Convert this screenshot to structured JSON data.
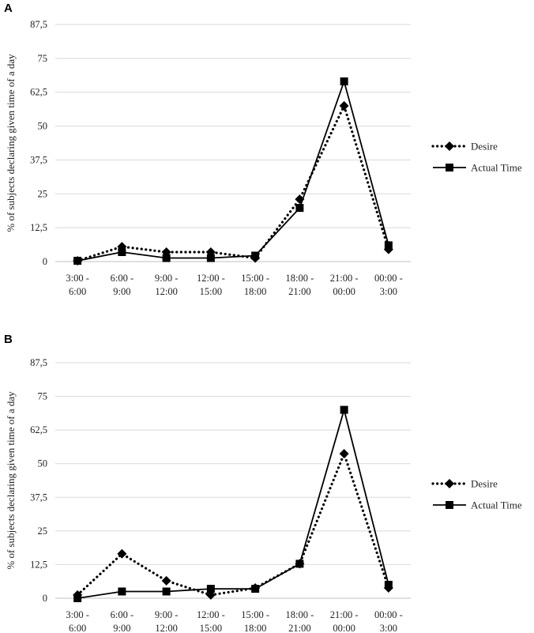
{
  "chart_data": [
    {
      "type": "line",
      "panel_label": "A",
      "ylabel": "% of subjects declaring given time of a day",
      "xlabel": "",
      "categories": [
        [
          "3:00 -",
          "6:00"
        ],
        [
          "6:00 -",
          "9:00"
        ],
        [
          "9:00 -",
          "12:00"
        ],
        [
          "12:00 -",
          "15:00"
        ],
        [
          "15:00 -",
          "18:00"
        ],
        [
          "18:00 -",
          "21:00"
        ],
        [
          "21:00 -",
          "00:00"
        ],
        [
          "00:00 -",
          "3:00"
        ]
      ],
      "yticks": [
        "0",
        "12,5",
        "25",
        "37,5",
        "50",
        "62,5",
        "75",
        "87,5"
      ],
      "ylim": [
        0,
        87.5
      ],
      "grid": true,
      "legend_position": "right",
      "series": [
        {
          "name": "Desire",
          "style": "dotted",
          "marker": "diamond",
          "values": [
            0.3,
            5.5,
            3.5,
            3.5,
            1.3,
            23.0,
            57.5,
            4.5
          ]
        },
        {
          "name": "Actual Time",
          "style": "solid",
          "marker": "square",
          "values": [
            0.3,
            3.5,
            1.3,
            1.3,
            2.2,
            19.8,
            66.5,
            6.0
          ]
        }
      ]
    },
    {
      "type": "line",
      "panel_label": "B",
      "ylabel": "% of subjects declaring given time of a day",
      "xlabel": "",
      "categories": [
        [
          "3:00 -",
          "6:00"
        ],
        [
          "6:00 -",
          "9:00"
        ],
        [
          "9:00 -",
          "12:00"
        ],
        [
          "12:00 -",
          "15:00"
        ],
        [
          "15:00 -",
          "18:00"
        ],
        [
          "18:00 -",
          "21:00"
        ],
        [
          "21:00 -",
          "00:00"
        ],
        [
          "00:00 -",
          "3:00"
        ]
      ],
      "yticks": [
        "0",
        "12,5",
        "25",
        "37,5",
        "50",
        "62,5",
        "75",
        "87,5"
      ],
      "ylim": [
        0,
        87.5
      ],
      "grid": true,
      "legend_position": "right",
      "series": [
        {
          "name": "Desire",
          "style": "dotted",
          "marker": "diamond",
          "values": [
            1.2,
            16.5,
            6.5,
            1.2,
            3.8,
            12.8,
            53.7,
            3.8
          ]
        },
        {
          "name": "Actual Time",
          "style": "solid",
          "marker": "square",
          "values": [
            0.0,
            2.5,
            2.5,
            3.5,
            3.5,
            12.8,
            70.0,
            5.0
          ]
        }
      ]
    }
  ]
}
